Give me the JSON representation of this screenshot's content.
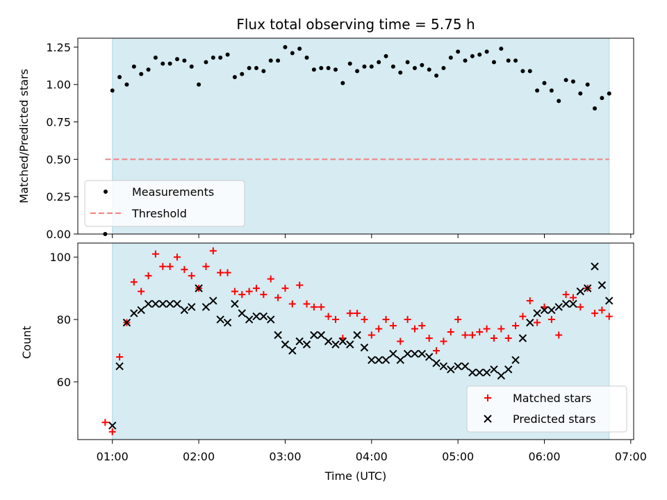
{
  "chart_data": [
    {
      "type": "scatter",
      "title": "Flux total observing time = 5.75 h",
      "xlabel": "",
      "ylabel": "Matched/Predicted stars",
      "xlim": [
        "00:36",
        "07:02"
      ],
      "ylim": [
        0,
        1.31
      ],
      "y_ticks": [
        "0.00",
        "0.25",
        "0.50",
        "0.75",
        "1.00",
        "1.25"
      ],
      "observing_window": [
        "01:00",
        "06:45"
      ],
      "legend": "lower-left",
      "grid": false,
      "threshold": {
        "name": "Threshold",
        "value": 0.5,
        "x": [
          "00:55",
          "06:45"
        ],
        "color": "#f08080"
      },
      "series": [
        {
          "name": "Measurements",
          "marker": "dot",
          "color": "#000000",
          "x": [
            "00:55",
            "01:00",
            "01:05",
            "01:10",
            "01:15",
            "01:20",
            "01:25",
            "01:30",
            "01:35",
            "01:40",
            "01:45",
            "01:50",
            "01:55",
            "02:00",
            "02:05",
            "02:10",
            "02:15",
            "02:20",
            "02:25",
            "02:30",
            "02:35",
            "02:40",
            "02:45",
            "02:50",
            "02:55",
            "03:00",
            "03:05",
            "03:10",
            "03:15",
            "03:20",
            "03:25",
            "03:30",
            "03:35",
            "03:40",
            "03:45",
            "03:50",
            "03:55",
            "04:00",
            "04:05",
            "04:10",
            "04:15",
            "04:20",
            "04:25",
            "04:30",
            "04:35",
            "04:40",
            "04:45",
            "04:50",
            "04:55",
            "05:00",
            "05:05",
            "05:10",
            "05:15",
            "05:20",
            "05:25",
            "05:30",
            "05:35",
            "05:40",
            "05:45",
            "05:50",
            "05:55",
            "06:00",
            "06:05",
            "06:10",
            "06:15",
            "06:20",
            "06:25",
            "06:30",
            "06:35",
            "06:40",
            "06:45"
          ],
          "y": [
            0.0,
            0.96,
            1.05,
            1.0,
            1.12,
            1.07,
            1.1,
            1.18,
            1.14,
            1.14,
            1.17,
            1.16,
            1.12,
            1.0,
            1.15,
            1.18,
            1.18,
            1.2,
            1.05,
            1.07,
            1.11,
            1.11,
            1.09,
            1.16,
            1.16,
            1.25,
            1.21,
            1.24,
            1.18,
            1.1,
            1.11,
            1.11,
            1.1,
            1.01,
            1.14,
            1.09,
            1.12,
            1.12,
            1.15,
            1.19,
            1.12,
            1.08,
            1.15,
            1.11,
            1.13,
            1.1,
            1.06,
            1.11,
            1.18,
            1.22,
            1.16,
            1.19,
            1.2,
            1.22,
            1.15,
            1.24,
            1.16,
            1.16,
            1.09,
            1.09,
            0.96,
            1.01,
            0.96,
            0.89,
            1.03,
            1.02,
            0.94,
            1.0,
            0.84,
            0.91,
            0.94
          ]
        }
      ]
    },
    {
      "type": "scatter",
      "title": "",
      "xlabel": "Time (UTC)",
      "ylabel": "Count",
      "xlim": [
        "00:36",
        "07:02"
      ],
      "ylim": [
        41.5,
        104.5
      ],
      "y_ticks": [
        "60",
        "80",
        "100"
      ],
      "x_ticks": [
        "01:00",
        "02:00",
        "03:00",
        "04:00",
        "05:00",
        "06:00",
        "07:00"
      ],
      "observing_window": [
        "01:00",
        "06:45"
      ],
      "legend": "lower-right",
      "grid": false,
      "series": [
        {
          "name": "Matched stars",
          "marker": "plus",
          "color": "#ff0000",
          "x": [
            "00:55",
            "01:00",
            "01:05",
            "01:10",
            "01:15",
            "01:20",
            "01:25",
            "01:30",
            "01:35",
            "01:40",
            "01:45",
            "01:50",
            "01:55",
            "02:00",
            "02:05",
            "02:10",
            "02:15",
            "02:20",
            "02:25",
            "02:30",
            "02:35",
            "02:40",
            "02:45",
            "02:50",
            "02:55",
            "03:00",
            "03:05",
            "03:10",
            "03:15",
            "03:20",
            "03:25",
            "03:30",
            "03:35",
            "03:40",
            "03:45",
            "03:50",
            "03:55",
            "04:00",
            "04:05",
            "04:10",
            "04:15",
            "04:20",
            "04:25",
            "04:30",
            "04:35",
            "04:40",
            "04:45",
            "04:50",
            "04:55",
            "05:00",
            "05:05",
            "05:10",
            "05:15",
            "05:20",
            "05:25",
            "05:30",
            "05:35",
            "05:40",
            "05:45",
            "05:50",
            "05:55",
            "06:00",
            "06:05",
            "06:10",
            "06:15",
            "06:20",
            "06:25",
            "06:30",
            "06:35",
            "06:40",
            "06:45"
          ],
          "y": [
            47,
            44,
            68,
            79,
            92,
            89,
            94,
            101,
            97,
            97,
            100,
            96,
            94,
            90,
            97,
            102,
            95,
            95,
            89,
            88,
            89,
            90,
            88,
            93,
            87,
            90,
            85,
            91,
            85,
            84,
            84,
            81,
            80,
            74,
            82,
            82,
            80,
            75,
            77,
            80,
            78,
            73,
            80,
            77,
            78,
            74,
            70,
            73,
            76,
            80,
            75,
            75,
            76,
            77,
            74,
            77,
            74,
            78,
            81,
            86,
            79,
            84,
            80,
            75,
            88,
            87,
            84,
            90,
            82,
            83,
            81
          ]
        },
        {
          "name": "Predicted stars",
          "marker": "x",
          "color": "#000000",
          "x": [
            "01:00",
            "01:05",
            "01:10",
            "01:15",
            "01:20",
            "01:25",
            "01:30",
            "01:35",
            "01:40",
            "01:45",
            "01:50",
            "01:55",
            "02:00",
            "02:05",
            "02:10",
            "02:15",
            "02:20",
            "02:25",
            "02:30",
            "02:35",
            "02:40",
            "02:45",
            "02:50",
            "02:55",
            "03:00",
            "03:05",
            "03:10",
            "03:15",
            "03:20",
            "03:25",
            "03:30",
            "03:35",
            "03:40",
            "03:45",
            "03:50",
            "03:55",
            "04:00",
            "04:05",
            "04:10",
            "04:15",
            "04:20",
            "04:25",
            "04:30",
            "04:35",
            "04:40",
            "04:45",
            "04:50",
            "04:55",
            "05:00",
            "05:05",
            "05:10",
            "05:15",
            "05:20",
            "05:25",
            "05:30",
            "05:35",
            "05:40",
            "05:45",
            "05:50",
            "05:55",
            "06:00",
            "06:05",
            "06:10",
            "06:15",
            "06:20",
            "06:25",
            "06:30",
            "06:35",
            "06:40",
            "06:45"
          ],
          "y": [
            46,
            65,
            79,
            82,
            83,
            85,
            85,
            85,
            85,
            85,
            83,
            84,
            90,
            84,
            86,
            80,
            79,
            85,
            82,
            80,
            81,
            81,
            80,
            75,
            72,
            70,
            73,
            72,
            75,
            75,
            73,
            72,
            73,
            72,
            75,
            71,
            67,
            67,
            67,
            69,
            67,
            69,
            69,
            69,
            68,
            66,
            65,
            64,
            65,
            65,
            63,
            63,
            63,
            64,
            62,
            64,
            67,
            74,
            79,
            82,
            83,
            83,
            84,
            85,
            85,
            89,
            90,
            97,
            91,
            86
          ]
        }
      ]
    }
  ]
}
